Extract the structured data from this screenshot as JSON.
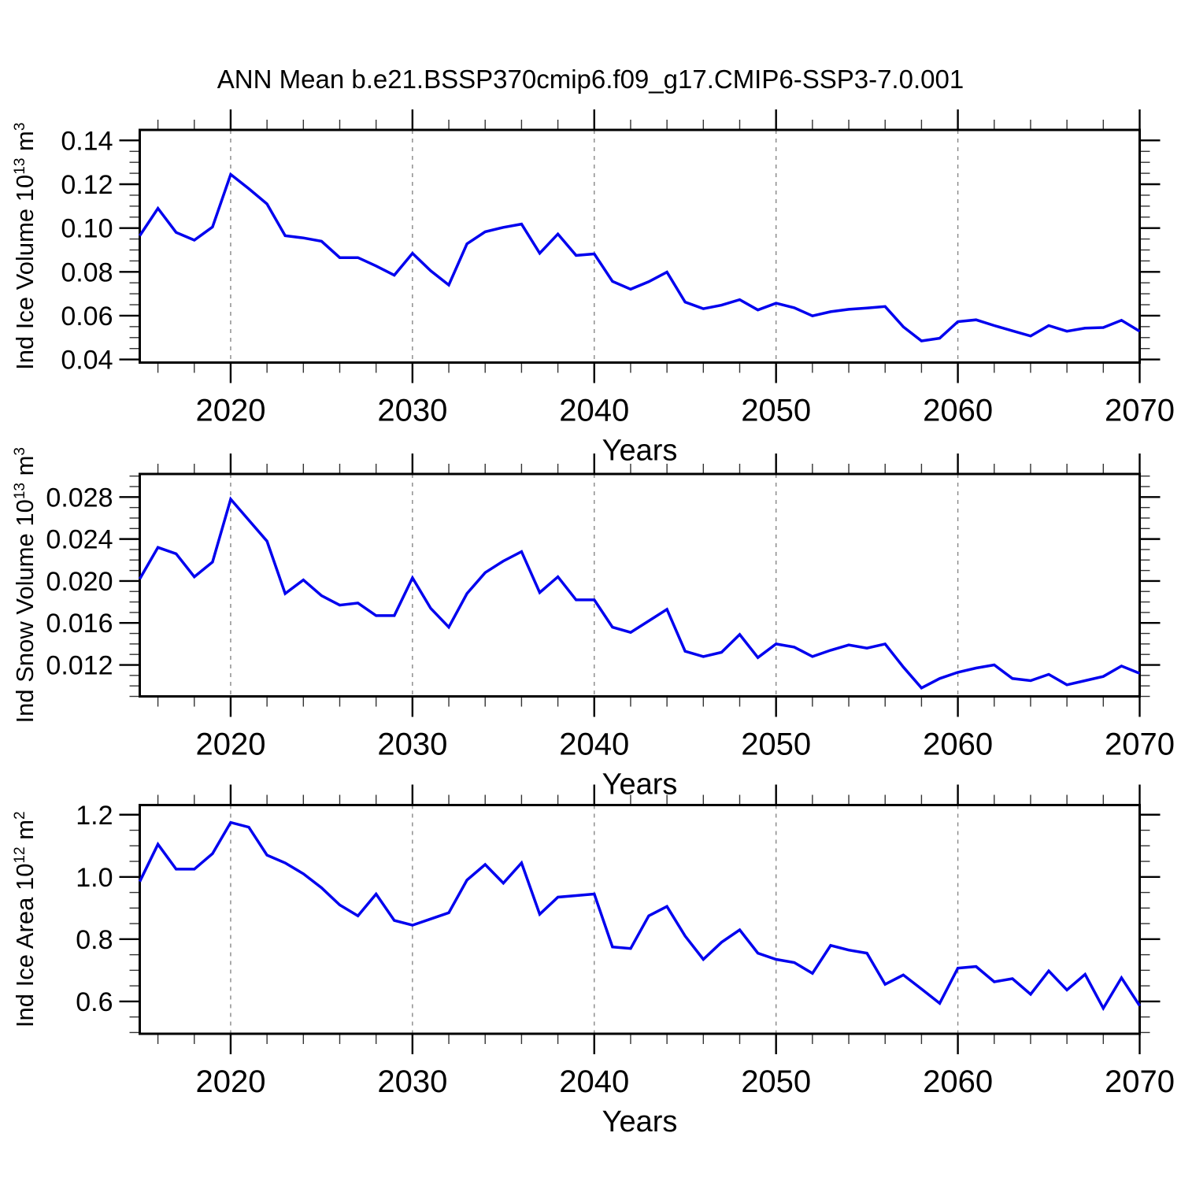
{
  "title": "ANN Mean b.e21.BSSP370cmip6.f09_g17.CMIP6-SSP3-7.0.001",
  "background_color": "#ffffff",
  "chart_data": {
    "type": "line",
    "title": "ANN Mean b.e21.BSSP370cmip6.f09_g17.CMIP6-SSP3-7.0.001",
    "xlabel": "Years",
    "line_color": "#0000EE",
    "grid_color": "#878787",
    "axis_color": "#000000",
    "grid_on": true,
    "grid_x": [
      2020,
      2030,
      2040,
      2050,
      2060
    ],
    "xlim": [
      2015,
      2070
    ],
    "xticks": [
      2020,
      2030,
      2040,
      2050,
      2060,
      2070
    ],
    "xtick_labels": [
      "2020",
      "2030",
      "2040",
      "2050",
      "2060",
      "2070"
    ],
    "xminor_step": 2,
    "years": [
      2015,
      2016,
      2017,
      2018,
      2019,
      2020,
      2021,
      2022,
      2023,
      2024,
      2025,
      2026,
      2027,
      2028,
      2029,
      2030,
      2031,
      2032,
      2033,
      2034,
      2035,
      2036,
      2037,
      2038,
      2039,
      2040,
      2041,
      2042,
      2043,
      2044,
      2045,
      2046,
      2047,
      2048,
      2049,
      2050,
      2051,
      2052,
      2053,
      2054,
      2055,
      2056,
      2057,
      2058,
      2059,
      2060,
      2061,
      2062,
      2063,
      2064,
      2065,
      2066,
      2067,
      2068,
      2069,
      2070
    ],
    "panels": [
      {
        "name": "ice-volume",
        "ylabel_text": "Ind Ice Volume 10^13 m^3",
        "ylabel_parts": [
          {
            "t": "Ind Ice Volume 10"
          },
          {
            "s": "13"
          },
          {
            "t": " m"
          },
          {
            "s": "3"
          }
        ],
        "ylim": [
          0.0386,
          0.1448
        ],
        "yticks": [
          0.04,
          0.06,
          0.08,
          0.1,
          0.12,
          0.14
        ],
        "ytick_labels": [
          "0.04",
          "0.06",
          "0.08",
          "0.10",
          "0.12",
          "0.14"
        ],
        "yminor_step": 0.005,
        "values": [
          0.0965,
          0.109,
          0.098,
          0.0945,
          0.1005,
          0.1245,
          0.118,
          0.111,
          0.0965,
          0.0955,
          0.094,
          0.0865,
          0.0865,
          0.0827,
          0.0785,
          0.0885,
          0.0805,
          0.074,
          0.0928,
          0.0983,
          0.1003,
          0.1018,
          0.0885,
          0.0973,
          0.0875,
          0.0882,
          0.0757,
          0.0721,
          0.0755,
          0.0799,
          0.0662,
          0.0632,
          0.0648,
          0.0673,
          0.0626,
          0.0657,
          0.0636,
          0.0599,
          0.0618,
          0.0629,
          0.0635,
          0.0642,
          0.0549,
          0.0485,
          0.0497,
          0.0573,
          0.0581,
          0.0555,
          0.0531,
          0.0507,
          0.0555,
          0.0529,
          0.0543,
          0.0546,
          0.0579,
          0.0529
        ]
      },
      {
        "name": "snow-volume",
        "ylabel_text": "Ind Snow Volume 10^13 m^3",
        "ylabel_parts": [
          {
            "t": "Ind Snow Volume 10"
          },
          {
            "s": "13"
          },
          {
            "t": " m"
          },
          {
            "s": "3"
          }
        ],
        "ylim": [
          0.009,
          0.0302
        ],
        "yticks": [
          0.012,
          0.016,
          0.02,
          0.024,
          0.028
        ],
        "ytick_labels": [
          "0.012",
          "0.016",
          "0.020",
          "0.024",
          "0.028"
        ],
        "yminor_step": 0.001,
        "values": [
          0.0202,
          0.0232,
          0.0226,
          0.0204,
          0.0218,
          0.0278,
          0.0258,
          0.0238,
          0.0188,
          0.0201,
          0.0186,
          0.0177,
          0.0179,
          0.0167,
          0.0167,
          0.0203,
          0.0174,
          0.0156,
          0.0188,
          0.0208,
          0.0219,
          0.0228,
          0.0189,
          0.0204,
          0.0182,
          0.0182,
          0.0156,
          0.0151,
          0.0162,
          0.0173,
          0.0133,
          0.0128,
          0.0132,
          0.0149,
          0.0127,
          0.014,
          0.0137,
          0.0128,
          0.0134,
          0.0139,
          0.0136,
          0.014,
          0.0118,
          0.0098,
          0.0107,
          0.0113,
          0.0117,
          0.012,
          0.0107,
          0.0105,
          0.0111,
          0.0101,
          0.0105,
          0.0109,
          0.0119,
          0.0112
        ]
      },
      {
        "name": "ice-area",
        "ylabel_text": "Ind Ice Area 10^12 m^2",
        "ylabel_parts": [
          {
            "t": "Ind Ice Area 10"
          },
          {
            "s": "12"
          },
          {
            "t": " m"
          },
          {
            "s": "2"
          }
        ],
        "ylim": [
          0.496,
          1.231
        ],
        "yticks": [
          0.6,
          0.8,
          1.0,
          1.2
        ],
        "ytick_labels": [
          "0.6",
          "0.8",
          "1.0",
          "1.2"
        ],
        "yminor_step": 0.05,
        "values": [
          0.985,
          1.105,
          1.025,
          1.025,
          1.075,
          1.175,
          1.16,
          1.07,
          1.045,
          1.01,
          0.965,
          0.91,
          0.875,
          0.945,
          0.86,
          0.845,
          0.865,
          0.885,
          0.99,
          1.04,
          0.98,
          1.045,
          0.88,
          0.935,
          0.94,
          0.945,
          0.775,
          0.77,
          0.875,
          0.905,
          0.81,
          0.735,
          0.79,
          0.83,
          0.755,
          0.735,
          0.725,
          0.69,
          0.78,
          0.765,
          0.755,
          0.655,
          0.685,
          0.64,
          0.594,
          0.707,
          0.712,
          0.663,
          0.673,
          0.623,
          0.698,
          0.637,
          0.687,
          0.578,
          0.676,
          0.586
        ]
      }
    ]
  }
}
